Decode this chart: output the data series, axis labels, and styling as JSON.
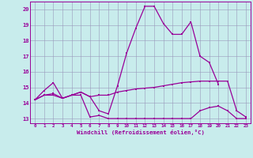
{
  "xlabel": "Windchill (Refroidissement éolien,°C)",
  "bg_color": "#c8ecec",
  "grid_color": "#9999bb",
  "line_color": "#990099",
  "line1": [
    14.2,
    14.8,
    15.3,
    14.3,
    14.5,
    14.7,
    14.4,
    13.5,
    13.3,
    15.1,
    17.2,
    18.8,
    20.2,
    20.2,
    19.1,
    18.4,
    18.4,
    19.2,
    17.0,
    16.6,
    15.2,
    null,
    null,
    null
  ],
  "line2": [
    14.2,
    14.5,
    14.6,
    14.3,
    14.5,
    14.7,
    14.4,
    14.5,
    14.5,
    14.7,
    14.8,
    14.9,
    14.95,
    15.0,
    15.1,
    15.2,
    15.3,
    15.35,
    15.4,
    15.4,
    15.4,
    15.4,
    13.5,
    13.1
  ],
  "line3": [
    14.2,
    14.5,
    14.5,
    14.3,
    14.5,
    14.5,
    13.1,
    13.2,
    13.0,
    13.0,
    13.0,
    13.0,
    13.0,
    13.0,
    13.0,
    13.0,
    13.0,
    13.0,
    13.5,
    13.7,
    13.8,
    13.5,
    13.0,
    13.0
  ],
  "ylim": [
    12.7,
    20.5
  ],
  "xlim": [
    -0.5,
    23.5
  ],
  "yticks": [
    13,
    14,
    15,
    16,
    17,
    18,
    19,
    20
  ],
  "xticks": [
    0,
    1,
    2,
    3,
    4,
    5,
    6,
    7,
    8,
    9,
    10,
    11,
    12,
    13,
    14,
    15,
    16,
    17,
    18,
    19,
    20,
    21,
    22,
    23
  ]
}
